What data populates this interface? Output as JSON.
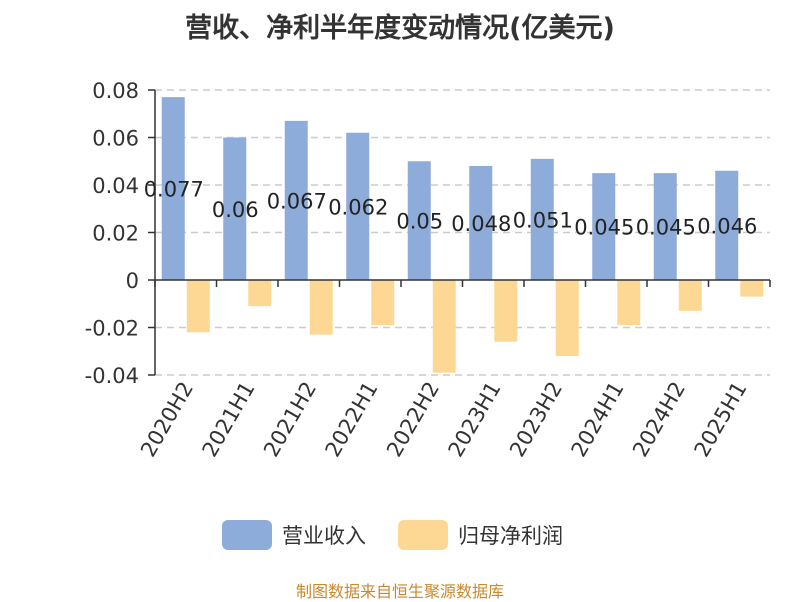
{
  "chart_data": {
    "type": "bar",
    "title": "营收、净利半年度变动情况(亿美元)",
    "categories": [
      "2020H2",
      "2021H1",
      "2021H2",
      "2022H1",
      "2022H2",
      "2023H1",
      "2023H2",
      "2024H1",
      "2024H2",
      "2025H1"
    ],
    "series": [
      {
        "name": "营业收入",
        "color": "#8eacd9",
        "values": [
          0.077,
          0.06,
          0.067,
          0.062,
          0.05,
          0.048,
          0.051,
          0.045,
          0.045,
          0.046
        ],
        "labels": [
          "0.077",
          "0.06",
          "0.067",
          "0.062",
          "0.05",
          "0.048",
          "0.051",
          "0.045",
          "0.045",
          "0.046"
        ]
      },
      {
        "name": "归母净利润",
        "color": "#fdd895",
        "values": [
          -0.022,
          -0.011,
          -0.023,
          -0.019,
          -0.039,
          -0.026,
          -0.032,
          -0.019,
          -0.013,
          -0.007
        ]
      }
    ],
    "ylim": [
      -0.04,
      0.08
    ],
    "yticks": [
      -0.04,
      -0.02,
      0,
      0.02,
      0.04,
      0.06,
      0.08
    ],
    "ytick_labels": [
      "-0.04",
      "-0.02",
      "0",
      "0.02",
      "0.04",
      "0.06",
      "0.08"
    ],
    "grid": true,
    "legend_position": "bottom"
  },
  "source": "制图数据来自恒生聚源数据库"
}
